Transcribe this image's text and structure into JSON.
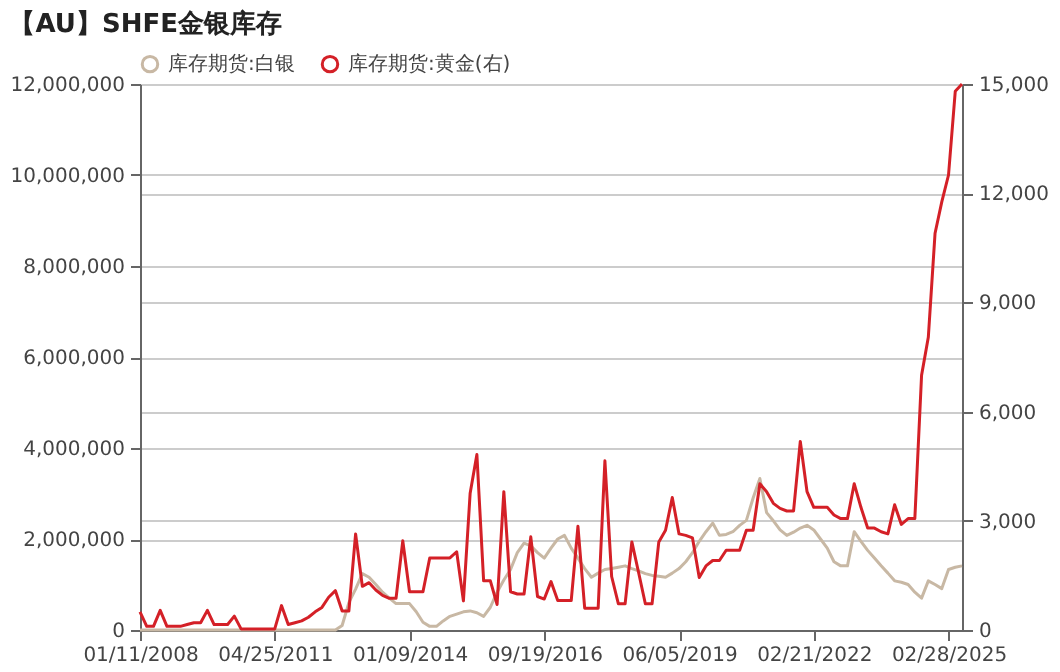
{
  "chart_data": {
    "type": "line",
    "title": "【AU】SHFE金银库存",
    "categories": [
      "01/11/2008",
      null,
      null,
      null,
      null,
      null,
      null,
      null,
      null,
      null,
      null,
      null,
      null,
      null,
      null,
      null,
      null,
      null,
      null,
      null,
      "04/25/2011",
      null,
      null,
      null,
      null,
      null,
      null,
      null,
      null,
      null,
      null,
      null,
      null,
      null,
      null,
      null,
      null,
      null,
      null,
      null,
      "01/09/2014",
      null,
      null,
      null,
      null,
      null,
      null,
      null,
      null,
      null,
      null,
      null,
      null,
      null,
      null,
      null,
      null,
      null,
      null,
      null,
      "09/19/2016",
      null,
      null,
      null,
      null,
      null,
      null,
      null,
      null,
      null,
      null,
      null,
      null,
      null,
      null,
      null,
      null,
      null,
      null,
      null,
      "06/05/2019",
      null,
      null,
      null,
      null,
      null,
      null,
      null,
      null,
      null,
      null,
      null,
      null,
      null,
      null,
      null,
      null,
      null,
      null,
      null,
      "02/21/2022",
      null,
      null,
      null,
      null,
      null,
      null,
      null,
      null,
      null,
      null,
      null,
      null,
      null,
      null,
      null,
      null,
      null,
      null,
      null,
      "02/28/2025",
      null,
      null
    ],
    "series": [
      {
        "name": "库存期货:白银",
        "color": "#c8b8a4",
        "values": [
          0,
          0,
          0,
          0,
          0,
          0,
          0,
          0,
          0,
          0,
          0,
          0,
          0,
          0,
          0,
          0,
          0,
          0,
          0,
          0,
          0,
          0,
          0,
          0,
          0,
          0,
          0,
          0,
          0,
          0,
          100000,
          600000,
          900000,
          1240000,
          1160000,
          1000000,
          830000,
          700000,
          580000,
          580000,
          580000,
          400000,
          170000,
          80000,
          80000,
          200000,
          300000,
          350000,
          400000,
          420000,
          380000,
          300000,
          500000,
          830000,
          1100000,
          1330000,
          1700000,
          1910000,
          1850000,
          1700000,
          1580000,
          1800000,
          2000000,
          2080000,
          1800000,
          1580000,
          1350000,
          1160000,
          1250000,
          1330000,
          1350000,
          1380000,
          1410000,
          1350000,
          1300000,
          1240000,
          1200000,
          1180000,
          1160000,
          1250000,
          1350000,
          1500000,
          1700000,
          1950000,
          2160000,
          2350000,
          2080000,
          2100000,
          2160000,
          2300000,
          2410000,
          2900000,
          3330000,
          2580000,
          2400000,
          2200000,
          2080000,
          2150000,
          2240000,
          2300000,
          2200000,
          2000000,
          1800000,
          1500000,
          1410000,
          1410000,
          2160000,
          1950000,
          1750000,
          1580000,
          1410000,
          1250000,
          1080000,
          1050000,
          1000000,
          830000,
          700000,
          1080000,
          1000000,
          910000,
          1330000,
          1380000,
          1410000
        ]
      },
      {
        "name": "库存期货:黄金(右)",
        "color": "#d42027",
        "axis": "y2",
        "values": [
          500,
          100,
          100,
          540,
          100,
          100,
          100,
          150,
          200,
          200,
          540,
          150,
          150,
          150,
          380,
          30,
          30,
          30,
          30,
          30,
          30,
          670,
          150,
          200,
          250,
          350,
          500,
          620,
          900,
          1080,
          520,
          520,
          2640,
          1200,
          1300,
          1100,
          950,
          870,
          870,
          2450,
          1050,
          1050,
          1050,
          1980,
          1980,
          1980,
          1980,
          2150,
          800,
          3760,
          4820,
          1350,
          1350,
          700,
          3800,
          1050,
          990,
          990,
          2560,
          920,
          850,
          1330,
          810,
          810,
          810,
          2850,
          600,
          600,
          600,
          4650,
          1470,
          720,
          720,
          2420,
          1580,
          720,
          720,
          2420,
          2740,
          3640,
          2640,
          2600,
          2530,
          1440,
          1760,
          1910,
          1910,
          2190,
          2190,
          2190,
          2740,
          2740,
          4020,
          3800,
          3480,
          3340,
          3270,
          3270,
          5180,
          3800,
          3370,
          3370,
          3370,
          3160,
          3060,
          3060,
          4020,
          3370,
          2800,
          2800,
          2700,
          2640,
          3440,
          2900,
          3060,
          3060,
          7000,
          8040,
          10900,
          11760,
          12500,
          14800,
          15000
        ]
      }
    ],
    "ylim": [
      0,
      12000000
    ],
    "yticks": [
      0,
      {
        "value": 2000000,
        "label": "2,000,000"
      },
      {
        "value": 4000000,
        "label": "4,000,000"
      },
      {
        "value": 6000000,
        "label": "6,000,000"
      },
      {
        "value": 8000000,
        "label": "8,000,000"
      },
      {
        "value": 10000000,
        "label": "10,000,000"
      },
      {
        "value": 12000000,
        "label": "12,000,000"
      }
    ],
    "y2lim": [
      0,
      15000
    ],
    "y2ticks": [
      0,
      {
        "value": 3000,
        "label": "3,000"
      },
      {
        "value": 6000,
        "label": "6,000"
      },
      {
        "value": 9000,
        "label": "9,000"
      },
      {
        "value": 12000,
        "label": "12,000"
      },
      {
        "value": 15000,
        "label": "15,000"
      }
    ],
    "grid": true,
    "legend": "top"
  }
}
